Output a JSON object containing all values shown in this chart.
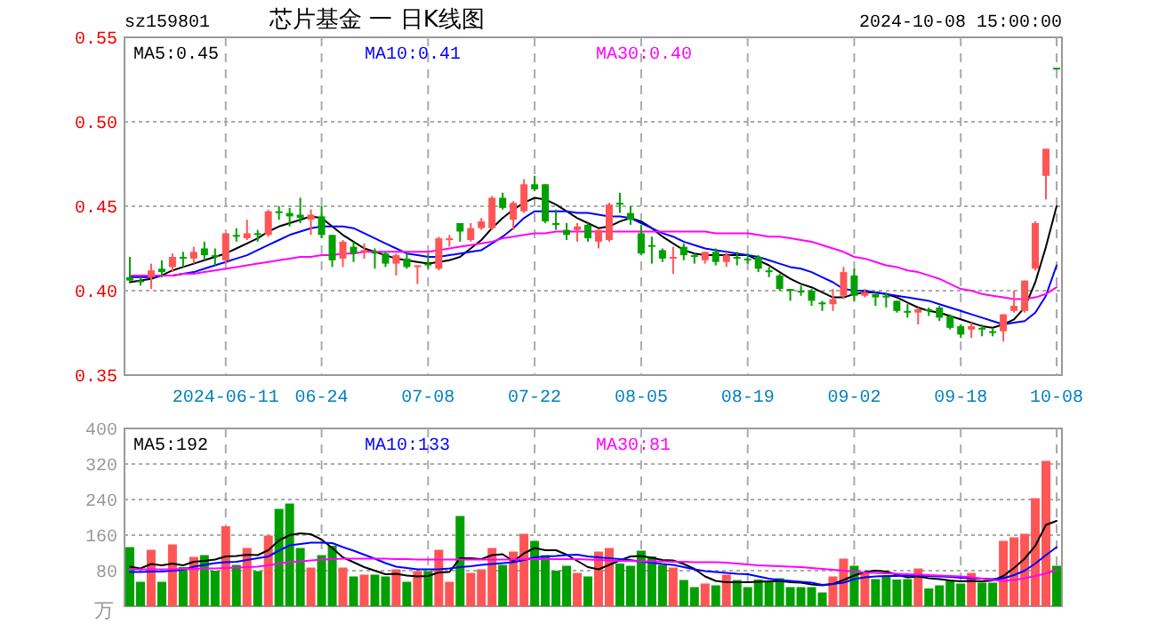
{
  "chart_data": [
    {
      "type": "candlestick",
      "title": "芯片基金 一 日K线图",
      "subtitle": "sz159801",
      "annotations": [
        "2024-10-08 15:00:00"
      ],
      "categories": [
        null,
        null,
        null,
        null,
        null,
        null,
        null,
        null,
        null,
        "2024-06-11",
        null,
        null,
        null,
        null,
        null,
        null,
        null,
        null,
        "06-24",
        null,
        null,
        null,
        null,
        null,
        null,
        null,
        null,
        null,
        "07-08",
        null,
        null,
        null,
        null,
        null,
        null,
        null,
        null,
        null,
        "07-22",
        null,
        null,
        null,
        null,
        null,
        null,
        null,
        null,
        null,
        "08-05",
        null,
        null,
        null,
        null,
        null,
        null,
        null,
        null,
        null,
        "08-19",
        null,
        null,
        null,
        null,
        null,
        null,
        null,
        null,
        null,
        "09-02",
        null,
        null,
        null,
        null,
        null,
        null,
        null,
        null,
        null,
        "09-18",
        null,
        null,
        null,
        null,
        null,
        null,
        null,
        null,
        "10-08"
      ],
      "ohlc": [
        [
          0.408,
          0.42,
          0.405,
          0.406
        ],
        [
          0.406,
          0.408,
          0.403,
          0.405
        ],
        [
          0.408,
          0.416,
          0.401,
          0.412
        ],
        [
          0.413,
          0.418,
          0.408,
          0.411
        ],
        [
          0.414,
          0.422,
          0.411,
          0.42
        ],
        [
          0.42,
          0.423,
          0.414,
          0.419
        ],
        [
          0.419,
          0.426,
          0.416,
          0.423
        ],
        [
          0.425,
          0.429,
          0.418,
          0.421
        ],
        [
          0.421,
          0.425,
          0.415,
          0.42
        ],
        [
          0.418,
          0.434,
          0.416,
          0.434
        ],
        [
          0.433,
          0.437,
          0.429,
          0.432
        ],
        [
          0.431,
          0.442,
          0.43,
          0.434
        ],
        [
          0.434,
          0.436,
          0.429,
          0.433
        ],
        [
          0.433,
          0.448,
          0.432,
          0.447
        ],
        [
          0.447,
          0.45,
          0.442,
          0.446
        ],
        [
          0.446,
          0.449,
          0.438,
          0.444
        ],
        [
          0.445,
          0.455,
          0.44,
          0.443
        ],
        [
          0.442,
          0.448,
          0.433,
          0.445
        ],
        [
          0.444,
          0.45,
          0.431,
          0.433
        ],
        [
          0.433,
          0.433,
          0.414,
          0.418
        ],
        [
          0.419,
          0.43,
          0.414,
          0.429
        ],
        [
          0.426,
          0.429,
          0.417,
          0.422
        ],
        [
          0.423,
          0.428,
          0.419,
          0.424
        ],
        [
          0.423,
          0.425,
          0.413,
          0.422
        ],
        [
          0.422,
          0.423,
          0.414,
          0.416
        ],
        [
          0.416,
          0.422,
          0.409,
          0.421
        ],
        [
          0.419,
          0.422,
          0.413,
          0.414
        ],
        [
          0.414,
          0.415,
          0.404,
          0.415
        ],
        [
          0.416,
          0.422,
          0.413,
          0.415
        ],
        [
          0.413,
          0.432,
          0.412,
          0.431
        ],
        [
          0.43,
          0.433,
          0.426,
          0.431
        ],
        [
          0.44,
          0.44,
          0.429,
          0.435
        ],
        [
          0.43,
          0.44,
          0.429,
          0.437
        ],
        [
          0.437,
          0.443,
          0.436,
          0.441
        ],
        [
          0.437,
          0.456,
          0.436,
          0.455
        ],
        [
          0.455,
          0.458,
          0.448,
          0.449
        ],
        [
          0.442,
          0.453,
          0.436,
          0.452
        ],
        [
          0.447,
          0.466,
          0.446,
          0.463
        ],
        [
          0.463,
          0.468,
          0.459,
          0.46
        ],
        [
          0.463,
          0.463,
          0.44,
          0.441
        ],
        [
          0.44,
          0.448,
          0.436,
          0.439
        ],
        [
          0.436,
          0.44,
          0.43,
          0.433
        ],
        [
          0.436,
          0.44,
          0.429,
          0.438
        ],
        [
          0.439,
          0.44,
          0.429,
          0.431
        ],
        [
          0.429,
          0.436,
          0.425,
          0.436
        ],
        [
          0.43,
          0.452,
          0.429,
          0.451
        ],
        [
          0.452,
          0.458,
          0.446,
          0.451
        ],
        [
          0.446,
          0.45,
          0.439,
          0.442
        ],
        [
          0.434,
          0.439,
          0.421,
          0.422
        ],
        [
          0.427,
          0.432,
          0.416,
          0.426
        ],
        [
          0.424,
          0.425,
          0.417,
          0.419
        ],
        [
          0.419,
          0.426,
          0.41,
          0.42
        ],
        [
          0.426,
          0.428,
          0.418,
          0.421
        ],
        [
          0.421,
          0.422,
          0.416,
          0.42
        ],
        [
          0.418,
          0.423,
          0.416,
          0.423
        ],
        [
          0.423,
          0.425,
          0.415,
          0.417
        ],
        [
          0.417,
          0.423,
          0.414,
          0.421
        ],
        [
          0.42,
          0.423,
          0.415,
          0.419
        ],
        [
          0.419,
          0.422,
          0.416,
          0.418
        ],
        [
          0.42,
          0.421,
          0.411,
          0.413
        ],
        [
          0.412,
          0.414,
          0.408,
          0.411
        ],
        [
          0.409,
          0.41,
          0.4,
          0.401
        ],
        [
          0.401,
          0.401,
          0.394,
          0.4
        ],
        [
          0.4,
          0.403,
          0.397,
          0.399
        ],
        [
          0.4,
          0.401,
          0.391,
          0.394
        ],
        [
          0.393,
          0.394,
          0.388,
          0.392
        ],
        [
          0.392,
          0.401,
          0.388,
          0.395
        ],
        [
          0.397,
          0.414,
          0.395,
          0.411
        ],
        [
          0.409,
          0.413,
          0.394,
          0.397
        ],
        [
          0.397,
          0.401,
          0.396,
          0.399
        ],
        [
          0.398,
          0.399,
          0.391,
          0.396
        ],
        [
          0.397,
          0.399,
          0.39,
          0.396
        ],
        [
          0.394,
          0.394,
          0.387,
          0.388
        ],
        [
          0.388,
          0.392,
          0.384,
          0.387
        ],
        [
          0.387,
          0.39,
          0.38,
          0.389
        ],
        [
          0.389,
          0.39,
          0.385,
          0.388
        ],
        [
          0.39,
          0.391,
          0.382,
          0.384
        ],
        [
          0.385,
          0.386,
          0.377,
          0.378
        ],
        [
          0.379,
          0.38,
          0.372,
          0.374
        ],
        [
          0.377,
          0.381,
          0.372,
          0.379
        ],
        [
          0.378,
          0.38,
          0.373,
          0.377
        ],
        [
          0.376,
          0.378,
          0.373,
          0.375
        ],
        [
          0.376,
          0.386,
          0.37,
          0.386
        ],
        [
          0.388,
          0.4,
          0.387,
          0.391
        ],
        [
          0.388,
          0.406,
          0.387,
          0.406
        ],
        [
          0.413,
          0.441,
          0.412,
          0.44
        ],
        [
          0.468,
          0.484,
          0.454,
          0.484
        ],
        [
          0.532,
          0.532,
          0.532,
          0.532
        ]
      ],
      "colors": [
        "#00a000",
        "#00a000",
        "#ff5555",
        "#00a000",
        "#ff5555",
        "#00a000",
        "#ff5555",
        "#00a000",
        "#00a000",
        "#ff5555",
        "#00a000",
        "#ff5555",
        "#00a000",
        "#ff5555",
        "#00a000",
        "#00a000",
        "#00a000",
        "#ff5555",
        "#00a000",
        "#00a000",
        "#ff5555",
        "#00a000",
        "#ff5555",
        "#00a000",
        "#00a000",
        "#ff5555",
        "#00a000",
        "#ff5555",
        "#00a000",
        "#ff5555",
        "#ff5555",
        "#00a000",
        "#ff5555",
        "#ff5555",
        "#ff5555",
        "#00a000",
        "#ff5555",
        "#ff5555",
        "#00a000",
        "#00a000",
        "#00a000",
        "#00a000",
        "#ff5555",
        "#00a000",
        "#ff5555",
        "#ff5555",
        "#00a000",
        "#00a000",
        "#00a000",
        "#00a000",
        "#00a000",
        "#ff5555",
        "#00a000",
        "#00a000",
        "#ff5555",
        "#00a000",
        "#ff5555",
        "#00a000",
        "#00a000",
        "#00a000",
        "#00a000",
        "#00a000",
        "#00a000",
        "#00a000",
        "#00a000",
        "#00a000",
        "#ff5555",
        "#ff5555",
        "#00a000",
        "#ff5555",
        "#00a000",
        "#00a000",
        "#00a000",
        "#00a000",
        "#ff5555",
        "#00a000",
        "#00a000",
        "#00a000",
        "#00a000",
        "#ff5555",
        "#00a000",
        "#00a000",
        "#ff5555",
        "#ff5555",
        "#ff5555",
        "#ff5555",
        "#ff5555",
        "#00a000"
      ],
      "series": [
        {
          "type": "line",
          "name": "MA5:0.45",
          "color": "#000000",
          "values": [
            0.405,
            0.406,
            0.407,
            0.409,
            0.412,
            0.414,
            0.416,
            0.418,
            0.42,
            0.422,
            0.425,
            0.428,
            0.431,
            0.435,
            0.438,
            0.44,
            0.442,
            0.444,
            0.443,
            0.438,
            0.433,
            0.429,
            0.425,
            0.423,
            0.421,
            0.419,
            0.418,
            0.417,
            0.416,
            0.417,
            0.418,
            0.42,
            0.425,
            0.43,
            0.437,
            0.443,
            0.448,
            0.452,
            0.455,
            0.454,
            0.451,
            0.447,
            0.443,
            0.44,
            0.437,
            0.438,
            0.441,
            0.443,
            0.441,
            0.437,
            0.432,
            0.428,
            0.424,
            0.422,
            0.421,
            0.421,
            0.421,
            0.421,
            0.421,
            0.418,
            0.415,
            0.411,
            0.407,
            0.404,
            0.402,
            0.399,
            0.396,
            0.396,
            0.398,
            0.399,
            0.399,
            0.398,
            0.396,
            0.393,
            0.39,
            0.388,
            0.387,
            0.385,
            0.383,
            0.381,
            0.379,
            0.378,
            0.38,
            0.383,
            0.39,
            0.405,
            0.426,
            0.45
          ]
        },
        {
          "type": "line",
          "name": "MA10:0.41",
          "color": "#0000ff",
          "values": [
            0.408,
            0.408,
            0.408,
            0.409,
            0.409,
            0.41,
            0.411,
            0.413,
            0.415,
            0.417,
            0.419,
            0.421,
            0.424,
            0.427,
            0.43,
            0.433,
            0.435,
            0.437,
            0.438,
            0.438,
            0.438,
            0.437,
            0.434,
            0.431,
            0.428,
            0.425,
            0.422,
            0.421,
            0.42,
            0.42,
            0.421,
            0.422,
            0.423,
            0.424,
            0.428,
            0.432,
            0.437,
            0.443,
            0.447,
            0.447,
            0.447,
            0.447,
            0.446,
            0.446,
            0.445,
            0.444,
            0.444,
            0.443,
            0.44,
            0.437,
            0.434,
            0.432,
            0.429,
            0.427,
            0.425,
            0.424,
            0.423,
            0.422,
            0.421,
            0.42,
            0.418,
            0.416,
            0.414,
            0.413,
            0.411,
            0.408,
            0.405,
            0.401,
            0.4,
            0.4,
            0.399,
            0.398,
            0.397,
            0.396,
            0.395,
            0.394,
            0.392,
            0.39,
            0.388,
            0.386,
            0.384,
            0.382,
            0.38,
            0.381,
            0.382,
            0.387,
            0.397,
            0.415
          ]
        },
        {
          "type": "line",
          "name": "MA30:0.40",
          "color": "#ff00ff",
          "values": [
            0.409,
            0.409,
            0.409,
            0.409,
            0.409,
            0.41,
            0.41,
            0.411,
            0.412,
            0.413,
            0.414,
            0.415,
            0.416,
            0.417,
            0.418,
            0.419,
            0.42,
            0.42,
            0.421,
            0.421,
            0.422,
            0.422,
            0.423,
            0.423,
            0.423,
            0.423,
            0.423,
            0.423,
            0.423,
            0.424,
            0.425,
            0.426,
            0.427,
            0.428,
            0.429,
            0.431,
            0.432,
            0.433,
            0.434,
            0.434,
            0.435,
            0.435,
            0.435,
            0.435,
            0.435,
            0.435,
            0.435,
            0.435,
            0.435,
            0.435,
            0.435,
            0.435,
            0.435,
            0.435,
            0.435,
            0.434,
            0.434,
            0.434,
            0.434,
            0.433,
            0.432,
            0.432,
            0.431,
            0.43,
            0.429,
            0.427,
            0.425,
            0.423,
            0.42,
            0.419,
            0.417,
            0.415,
            0.414,
            0.412,
            0.411,
            0.409,
            0.407,
            0.404,
            0.401,
            0.4,
            0.398,
            0.397,
            0.396,
            0.395,
            0.395,
            0.396,
            0.398,
            0.402
          ]
        }
      ],
      "ylim": [
        0.35,
        0.55
      ],
      "yticks": [
        {
          "value": 0.35,
          "label": "0.35"
        },
        {
          "value": 0.4,
          "label": "0.40"
        },
        {
          "value": 0.45,
          "label": "0.45"
        },
        {
          "value": 0.5,
          "label": "0.50"
        },
        {
          "value": 0.55,
          "label": "0.55"
        }
      ],
      "grid": true,
      "legend": "top left"
    },
    {
      "type": "bar",
      "ylabel": "万",
      "categories": [
        null,
        null,
        null,
        null,
        null,
        null,
        null,
        null,
        null,
        null,
        null,
        null,
        null,
        null,
        null,
        null,
        null,
        null,
        null,
        null,
        null,
        null,
        null,
        null,
        null,
        null,
        null,
        null,
        null,
        null,
        null,
        null,
        null,
        null,
        null,
        null,
        null,
        null,
        null,
        null,
        null,
        null,
        null,
        null,
        null,
        null,
        null,
        null,
        null,
        null,
        null,
        null,
        null,
        null,
        null,
        null,
        null,
        null,
        null,
        null,
        null,
        null,
        null,
        null,
        null,
        null,
        null,
        null,
        null,
        null,
        null,
        null,
        null,
        null,
        null,
        null,
        null,
        null,
        null,
        null,
        null,
        null,
        null,
        null,
        null,
        null,
        null,
        null
      ],
      "values": [
        133,
        55,
        127,
        55,
        139,
        88,
        111,
        115,
        80,
        180,
        93,
        131,
        79,
        159,
        219,
        231,
        131,
        87,
        115,
        136,
        87,
        67,
        71,
        71,
        67,
        83,
        55,
        79,
        79,
        127,
        55,
        203,
        75,
        83,
        131,
        93,
        123,
        163,
        147,
        115,
        80,
        91,
        75,
        67,
        123,
        131,
        96,
        91,
        125,
        112,
        93,
        87,
        59,
        43,
        51,
        47,
        71,
        59,
        43,
        60,
        56,
        63,
        43,
        43,
        43,
        31,
        67,
        107,
        91,
        75,
        61,
        67,
        60,
        61,
        85,
        40,
        47,
        57,
        51,
        75,
        53,
        53,
        147,
        155,
        163,
        243,
        327,
        91
      ],
      "colors": [
        "#00a000",
        "#00a000",
        "#ff5555",
        "#00a000",
        "#ff5555",
        "#00a000",
        "#ff5555",
        "#00a000",
        "#00a000",
        "#ff5555",
        "#00a000",
        "#ff5555",
        "#00a000",
        "#ff5555",
        "#00a000",
        "#00a000",
        "#00a000",
        "#ff5555",
        "#00a000",
        "#00a000",
        "#ff5555",
        "#00a000",
        "#ff5555",
        "#00a000",
        "#00a000",
        "#ff5555",
        "#00a000",
        "#ff5555",
        "#00a000",
        "#ff5555",
        "#ff5555",
        "#00a000",
        "#ff5555",
        "#ff5555",
        "#ff5555",
        "#00a000",
        "#ff5555",
        "#ff5555",
        "#00a000",
        "#00a000",
        "#00a000",
        "#00a000",
        "#ff5555",
        "#00a000",
        "#ff5555",
        "#ff5555",
        "#00a000",
        "#00a000",
        "#00a000",
        "#00a000",
        "#00a000",
        "#ff5555",
        "#00a000",
        "#00a000",
        "#ff5555",
        "#00a000",
        "#ff5555",
        "#00a000",
        "#00a000",
        "#00a000",
        "#00a000",
        "#00a000",
        "#00a000",
        "#00a000",
        "#00a000",
        "#00a000",
        "#ff5555",
        "#ff5555",
        "#00a000",
        "#ff5555",
        "#00a000",
        "#00a000",
        "#00a000",
        "#00a000",
        "#ff5555",
        "#00a000",
        "#00a000",
        "#00a000",
        "#00a000",
        "#ff5555",
        "#00a000",
        "#00a000",
        "#ff5555",
        "#ff5555",
        "#ff5555",
        "#ff5555",
        "#ff5555",
        "#00a000"
      ],
      "series": [
        {
          "type": "line",
          "name": "MA5:192",
          "color": "#000000",
          "values": [
            89,
            85,
            95,
            92,
            96,
            92,
            100,
            102,
            105,
            112,
            113,
            116,
            115,
            126,
            148,
            160,
            164,
            162,
            150,
            131,
            110,
            99,
            88,
            80,
            72,
            73,
            69,
            67,
            68,
            76,
            77,
            108,
            108,
            106,
            115,
            117,
            101,
            119,
            131,
            126,
            126,
            116,
            102,
            88,
            83,
            93,
            103,
            112,
            113,
            109,
            104,
            103,
            95,
            84,
            67,
            57,
            54,
            54,
            54,
            55,
            56,
            57,
            54,
            53,
            49,
            47,
            50,
            59,
            69,
            77,
            80,
            78,
            71,
            65,
            67,
            63,
            61,
            58,
            56,
            57,
            56,
            58,
            68,
            86,
            107,
            136,
            183,
            192
          ]
        },
        {
          "type": "line",
          "name": "MA10:133",
          "color": "#0000ff",
          "values": [
            77,
            77,
            78,
            78,
            80,
            82,
            89,
            93,
            97,
            99,
            100,
            104,
            108,
            112,
            125,
            137,
            140,
            143,
            143,
            142,
            133,
            125,
            116,
            107,
            97,
            89,
            86,
            83,
            83,
            83,
            85,
            88,
            90,
            93,
            95,
            97,
            99,
            104,
            110,
            112,
            113,
            115,
            116,
            112,
            110,
            108,
            106,
            104,
            100,
            98,
            95,
            93,
            88,
            83,
            79,
            77,
            75,
            73,
            72,
            67,
            62,
            59,
            57,
            55,
            53,
            48,
            50,
            53,
            61,
            65,
            67,
            68,
            68,
            69,
            69,
            68,
            67,
            66,
            64,
            63,
            62,
            61,
            63,
            70,
            80,
            96,
            115,
            133
          ]
        },
        {
          "type": "line",
          "name": "MA30:81",
          "color": "#ff00ff",
          "values": [
            83,
            83,
            83,
            83,
            83,
            84,
            84,
            85,
            85,
            86,
            87,
            88,
            89,
            92,
            96,
            99,
            101,
            103,
            105,
            106,
            107,
            107,
            107,
            107,
            107,
            106,
            106,
            105,
            105,
            105,
            105,
            105,
            105,
            105,
            105,
            105,
            105,
            106,
            106,
            106,
            106,
            106,
            106,
            105,
            104,
            103,
            102,
            102,
            101,
            101,
            101,
            100,
            100,
            99,
            99,
            99,
            98,
            96,
            94,
            92,
            91,
            90,
            89,
            88,
            86,
            84,
            82,
            80,
            78,
            76,
            75,
            74,
            73,
            72,
            71,
            70,
            69,
            68,
            67,
            65,
            62,
            59,
            57,
            59,
            63,
            68,
            74,
            81
          ]
        }
      ],
      "ylim": [
        0,
        400
      ],
      "yticks": [
        80,
        160,
        240,
        320,
        400
      ],
      "grid": true,
      "legend": "top left",
      "tick_labels": "y"
    }
  ]
}
